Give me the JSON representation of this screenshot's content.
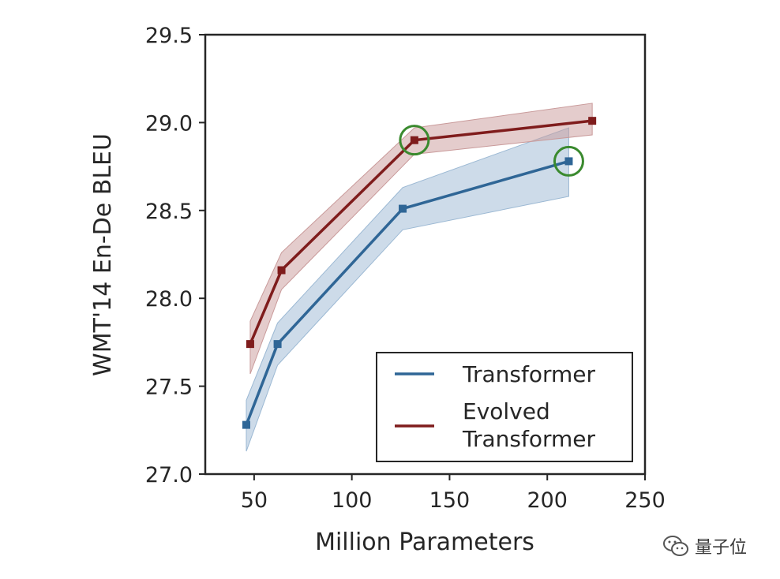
{
  "chart_data": {
    "type": "line",
    "xlabel": "Million Parameters",
    "ylabel": "WMT'14 En-De BLEU",
    "xlim": [
      25,
      250
    ],
    "ylim": [
      27.0,
      29.5
    ],
    "xticks": [
      50,
      100,
      150,
      200,
      250
    ],
    "yticks": [
      27.0,
      27.5,
      28.0,
      28.5,
      29.0,
      29.5
    ],
    "xtick_labels": [
      "50",
      "100",
      "150",
      "200",
      "250"
    ],
    "ytick_labels": [
      "27.0",
      "27.5",
      "28.0",
      "28.5",
      "29.0",
      "29.5"
    ],
    "legend_position": "lower-right",
    "series": [
      {
        "name": "Transformer",
        "legend_label": [
          "Transformer"
        ],
        "color": "#2f6696",
        "band_color": "#9bb8d3",
        "x": [
          46,
          62,
          126,
          211
        ],
        "values": [
          27.28,
          27.74,
          28.51,
          28.78
        ],
        "lower": [
          27.13,
          27.62,
          28.39,
          28.58
        ],
        "upper": [
          27.42,
          27.86,
          28.63,
          28.97
        ],
        "highlighted": [
          false,
          false,
          false,
          true
        ]
      },
      {
        "name": "Evolved Transformer",
        "legend_label": [
          "Evolved",
          "Transformer"
        ],
        "color": "#7f1c1c",
        "band_color": "#c99a9a",
        "x": [
          48,
          64,
          132,
          223
        ],
        "values": [
          27.74,
          28.16,
          28.9,
          29.01
        ],
        "lower": [
          27.57,
          28.05,
          28.82,
          28.93
        ],
        "upper": [
          27.87,
          28.26,
          28.97,
          29.11
        ],
        "highlighted": [
          false,
          false,
          true,
          false
        ]
      }
    ],
    "highlight_color": "#3a8a2e"
  },
  "watermark": {
    "text": "量子位",
    "icon": "wechat-icon"
  }
}
